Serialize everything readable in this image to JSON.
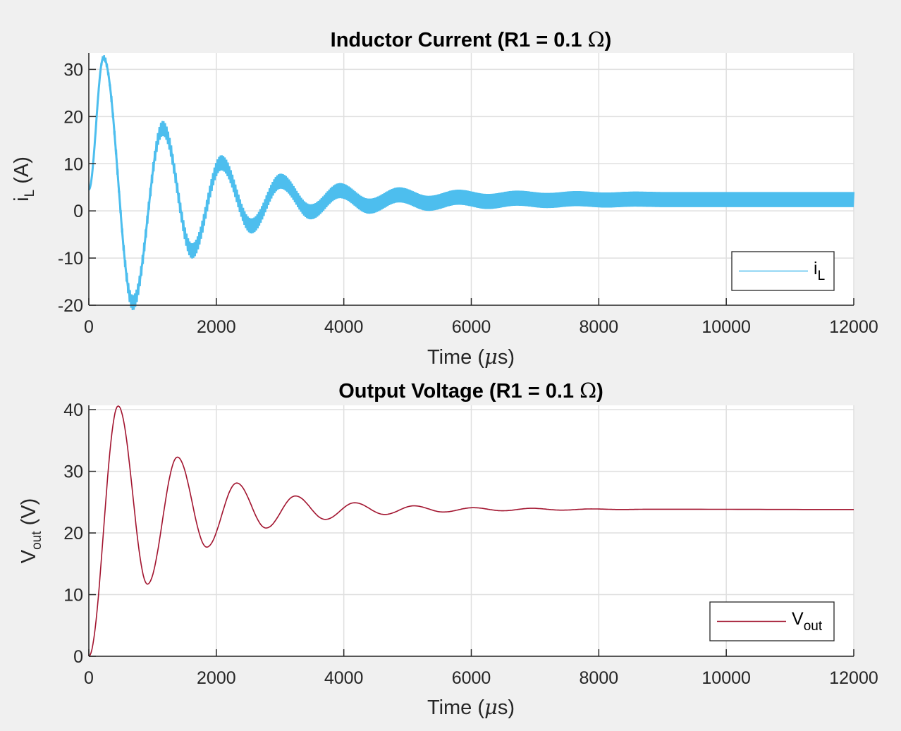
{
  "chart_data": [
    {
      "type": "line",
      "title_main": "Inductor Current (R1 = 0.1 ",
      "title_symbol": "Ω",
      "title_close": ")",
      "xlabel_main": "Time (",
      "xlabel_symbol": "μ",
      "xlabel_unit": "s)",
      "ylabel_main": "i",
      "ylabel_sub": "L",
      "ylabel_unit": " (A)",
      "xlim": [
        0,
        12000
      ],
      "ylim": [
        -20,
        33.5
      ],
      "xticks": [
        0,
        2000,
        4000,
        6000,
        8000,
        10000,
        12000
      ],
      "yticks": [
        -20,
        -10,
        0,
        10,
        20,
        30
      ],
      "grid": true,
      "legend_location": "bottom-right",
      "series": [
        {
          "legend_main": "i",
          "legend_sub": "L",
          "color": "#4dbeee",
          "ripple": 1.6,
          "x": [
            0,
            230,
            690,
            1160,
            1620,
            2080,
            2550,
            3010,
            3480,
            3940,
            4400,
            4870,
            5330,
            5800,
            6260,
            6720,
            7190,
            7650,
            8110,
            8570,
            9040,
            12000
          ],
          "values": [
            4.5,
            32.5,
            -19.5,
            17.5,
            -8.5,
            10.2,
            -3.2,
            6.3,
            -0.2,
            4.3,
            1.0,
            3.4,
            1.6,
            2.9,
            2.0,
            2.7,
            2.2,
            2.6,
            2.3,
            2.5,
            2.4,
            2.4
          ]
        }
      ]
    },
    {
      "type": "line",
      "title_main": "Output Voltage (R1 = 0.1 ",
      "title_symbol": "Ω",
      "title_close": ")",
      "xlabel_main": "Time (",
      "xlabel_symbol": "μ",
      "xlabel_unit": "s)",
      "ylabel_main": "V",
      "ylabel_sub": "out",
      "ylabel_unit": " (V)",
      "xlim": [
        0,
        12000
      ],
      "ylim": [
        0,
        40.7
      ],
      "xticks": [
        0,
        2000,
        4000,
        6000,
        8000,
        10000,
        12000
      ],
      "yticks": [
        0,
        10,
        20,
        30,
        40
      ],
      "grid": true,
      "legend_location": "bottom-right",
      "series": [
        {
          "legend_main": "V",
          "legend_sub": "out",
          "color": "#a2142f",
          "ripple": 0,
          "x": [
            0,
            460,
            920,
            1390,
            1850,
            2320,
            2780,
            3240,
            3710,
            4170,
            4640,
            5100,
            5560,
            6030,
            6490,
            6950,
            7420,
            7880,
            8350,
            8810,
            12000
          ],
          "values": [
            0,
            40.6,
            11.7,
            32.3,
            17.7,
            28.1,
            20.8,
            26.0,
            22.2,
            24.9,
            23.0,
            24.4,
            23.4,
            24.1,
            23.6,
            24.0,
            23.7,
            23.9,
            23.8,
            23.85,
            23.8
          ]
        }
      ]
    }
  ]
}
